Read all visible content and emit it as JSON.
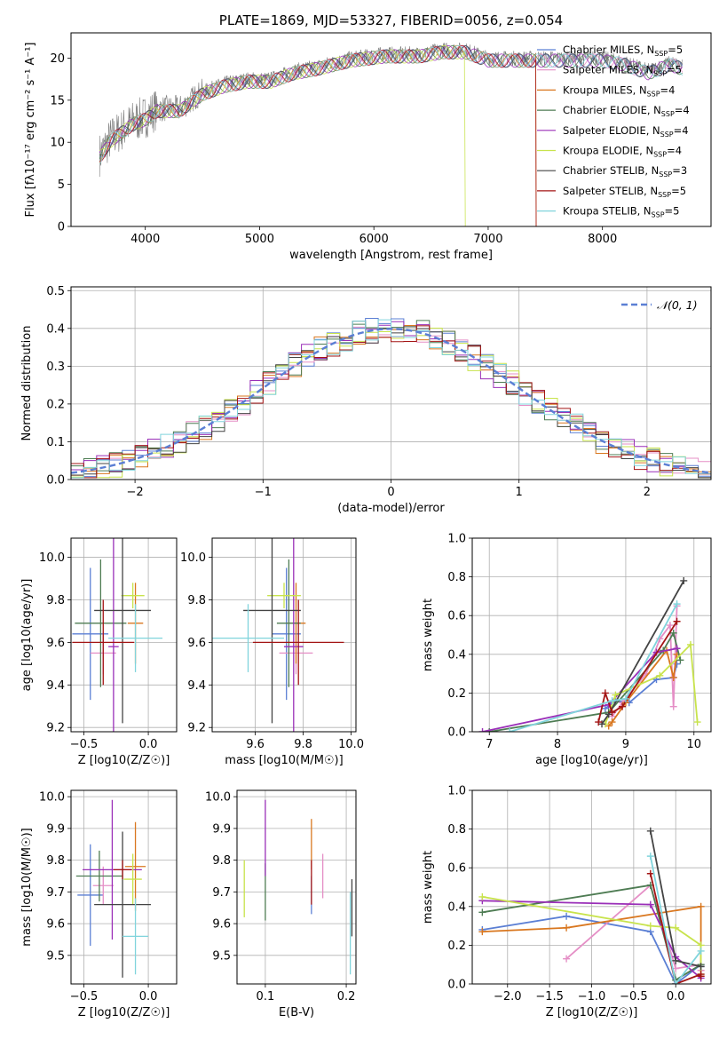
{
  "colors": {
    "c0": "#5b7fd4",
    "c1": "#e58fc6",
    "c2": "#d9771f",
    "c3": "#4e7c53",
    "c4": "#9a2fb8",
    "c5": "#c8e34c",
    "c6": "#444444",
    "c7": "#a31515",
    "c8": "#80d4dc"
  },
  "chart_data": [
    {
      "id": "spectrum",
      "type": "line",
      "title": "PLATE=1869, MJD=53327, FIBERID=0056, z=0.054",
      "xlabel": "wavelength [Angstrom, rest frame]",
      "ylabel": "Flux [fλ10⁻¹⁷ erg cm⁻² s⁻¹ A⁻¹]",
      "xlim": [
        3350,
        8950
      ],
      "ylim": [
        0,
        23
      ],
      "xticks": [
        4000,
        5000,
        6000,
        7000,
        8000
      ],
      "yticks": [
        0,
        5,
        10,
        15,
        20
      ],
      "grid": false,
      "legend_position": "top-right",
      "continuum": [
        [
          3600,
          8.5
        ],
        [
          3700,
          10.5
        ],
        [
          3800,
          11.5
        ],
        [
          3900,
          12.5
        ],
        [
          4000,
          13
        ],
        [
          4100,
          14
        ],
        [
          4300,
          14
        ],
        [
          4500,
          16
        ],
        [
          4700,
          17
        ],
        [
          4900,
          17.5
        ],
        [
          5100,
          17.5
        ],
        [
          5300,
          18.5
        ],
        [
          5500,
          19
        ],
        [
          5800,
          20
        ],
        [
          6100,
          20.5
        ],
        [
          6400,
          20.5
        ],
        [
          6600,
          21
        ],
        [
          6800,
          21
        ],
        [
          7000,
          20
        ],
        [
          7200,
          20
        ],
        [
          7400,
          20
        ],
        [
          7600,
          20
        ],
        [
          7800,
          20
        ],
        [
          8000,
          20
        ],
        [
          8200,
          19.5
        ],
        [
          8400,
          18.5
        ],
        [
          8600,
          19.5
        ],
        [
          8700,
          19
        ]
      ],
      "legend": [
        {
          "label": "Chabrier MILES, N",
          "sub": "SSP",
          "suffix": "=5",
          "color": "c0"
        },
        {
          "label": "Salpeter MILES, N",
          "sub": "SSP",
          "suffix": "=5",
          "color": "c1"
        },
        {
          "label": "Kroupa MILES, N",
          "sub": "SSP",
          "suffix": "=4",
          "color": "c2"
        },
        {
          "label": "Chabrier ELODIE, N",
          "sub": "SSP",
          "suffix": "=4",
          "color": "c3"
        },
        {
          "label": "Salpeter ELODIE, N",
          "sub": "SSP",
          "suffix": "=4",
          "color": "c4"
        },
        {
          "label": "Kroupa ELODIE, N",
          "sub": "SSP",
          "suffix": "=4",
          "color": "c5"
        },
        {
          "label": "Chabrier STELIB, N",
          "sub": "SSP",
          "suffix": "=3",
          "color": "c6"
        },
        {
          "label": "Salpeter STELIB, N",
          "sub": "SSP",
          "suffix": "=5",
          "color": "c7"
        },
        {
          "label": "Kroupa STELIB, N",
          "sub": "SSP",
          "suffix": "=5",
          "color": "c8"
        }
      ]
    },
    {
      "id": "residuals",
      "type": "line",
      "xlabel": "(data-model)/error",
      "ylabel": "Normed distribution",
      "xlim": [
        -2.5,
        2.5
      ],
      "ylim": [
        0,
        0.51
      ],
      "xticks": [
        -2,
        -1,
        0,
        1,
        2
      ],
      "yticks": [
        0.0,
        0.1,
        0.2,
        0.3,
        0.4,
        0.5
      ],
      "xtick_labels": [
        "−2",
        "−1",
        "0",
        "1",
        "2"
      ],
      "ytick_labels": [
        "0.0",
        "0.1",
        "0.2",
        "0.3",
        "0.4",
        "0.5"
      ],
      "grid": true,
      "legend_position": "top-right",
      "legend": [
        {
          "label": "𝒩(0, 1)",
          "color": "c0"
        }
      ],
      "gaussian": {
        "mean": 0,
        "sigma": 1
      }
    },
    {
      "id": "age_vs_z",
      "type": "scatter",
      "xlabel": "Z [log10(Z/Z☉)]",
      "ylabel": "age  [log10(age/yr)]",
      "xlim": [
        -0.6,
        0.22
      ],
      "ylim": [
        9.18,
        10.09
      ],
      "xticks": [
        -0.5,
        0.0
      ],
      "yticks": [
        9.2,
        9.4,
        9.6,
        9.8,
        10.0
      ],
      "xtick_labels": [
        "−0.5",
        "0.0"
      ],
      "ytick_labels": [
        "9.2",
        "9.4",
        "9.6",
        "9.8",
        "10.0"
      ],
      "grid": true,
      "points": [
        {
          "x": -0.45,
          "y": 9.64,
          "xerr": 0.14,
          "yerr": 0.31,
          "color": "c0"
        },
        {
          "x": -0.35,
          "y": 9.55,
          "xerr": 0.1,
          "yerr": 0.1,
          "color": "c1"
        },
        {
          "x": -0.1,
          "y": 9.69,
          "xerr": 0.06,
          "yerr": 0.19,
          "color": "c2"
        },
        {
          "x": -0.37,
          "y": 9.69,
          "xerr": 0.2,
          "yerr": 0.3,
          "color": "c3"
        },
        {
          "x": -0.27,
          "y": 9.58,
          "xerr": 0.04,
          "yerr": 0.52,
          "color": "c4"
        },
        {
          "x": -0.12,
          "y": 9.82,
          "xerr": 0.09,
          "yerr": 0.06,
          "color": "c5"
        },
        {
          "x": -0.2,
          "y": 9.75,
          "xerr": 0.22,
          "yerr": 0.53,
          "color": "c6"
        },
        {
          "x": -0.35,
          "y": 9.6,
          "xerr": 0.24,
          "yerr": 0.2,
          "color": "c7"
        },
        {
          "x": -0.1,
          "y": 9.62,
          "xerr": 0.21,
          "yerr": 0.16,
          "color": "c8"
        }
      ]
    },
    {
      "id": "age_vs_mass",
      "type": "scatter",
      "xlabel": "mass [log10(M/M☉)]",
      "ylabel": "",
      "xlim": [
        9.42,
        10.02
      ],
      "ylim": [
        9.18,
        10.09
      ],
      "xticks": [
        9.6,
        9.8,
        10.0
      ],
      "yticks": [
        9.2,
        9.4,
        9.6,
        9.8,
        10.0
      ],
      "xtick_labels": [
        "9.6",
        "9.8",
        "10.0"
      ],
      "ytick_labels": [
        "9.2",
        "9.4",
        "9.6",
        "9.8",
        "10.0"
      ],
      "grid": true,
      "points": [
        {
          "x": 9.73,
          "y": 9.64,
          "xerr": 0.06,
          "yerr": 0.31,
          "color": "c0"
        },
        {
          "x": 9.77,
          "y": 9.55,
          "xerr": 0.07,
          "yerr": 0.1,
          "color": "c1"
        },
        {
          "x": 9.77,
          "y": 9.69,
          "xerr": 0.04,
          "yerr": 0.19,
          "color": "c2"
        },
        {
          "x": 9.74,
          "y": 9.69,
          "xerr": 0.05,
          "yerr": 0.3,
          "color": "c3"
        },
        {
          "x": 9.76,
          "y": 9.58,
          "xerr": 0.04,
          "yerr": 0.52,
          "color": "c4"
        },
        {
          "x": 9.72,
          "y": 9.82,
          "xerr": 0.07,
          "yerr": 0.06,
          "color": "c5"
        },
        {
          "x": 9.67,
          "y": 9.75,
          "xerr": 0.12,
          "yerr": 0.53,
          "color": "c6"
        },
        {
          "x": 9.78,
          "y": 9.6,
          "xerr": 0.19,
          "yerr": 0.2,
          "color": "c7"
        },
        {
          "x": 9.57,
          "y": 9.62,
          "xerr": 0.15,
          "yerr": 0.16,
          "color": "c8"
        }
      ]
    },
    {
      "id": "weight_vs_age",
      "type": "line",
      "xlabel": "age  [log10(age/yr)]",
      "ylabel": "mass weight",
      "xlim": [
        6.75,
        10.25
      ],
      "ylim": [
        0,
        1.0
      ],
      "xticks": [
        7,
        8,
        9,
        10
      ],
      "yticks": [
        0.0,
        0.2,
        0.4,
        0.6,
        0.8,
        1.0
      ],
      "xtick_labels": [
        "7",
        "8",
        "9",
        "10"
      ],
      "ytick_labels": [
        "0.0",
        "0.2",
        "0.4",
        "0.6",
        "0.8",
        "1.0"
      ],
      "grid": true,
      "series": [
        {
          "color": "c0",
          "x": [
            8.7,
            8.85,
            9.05,
            9.45,
            9.7,
            9.75
          ],
          "y": [
            0.12,
            0.16,
            0.15,
            0.27,
            0.28,
            0.35
          ]
        },
        {
          "color": "c1",
          "x": [
            8.8,
            8.95,
            9.3,
            9.5,
            9.65,
            9.7,
            9.75
          ],
          "y": [
            0.08,
            0.15,
            0.3,
            0.48,
            0.55,
            0.13,
            0.65
          ]
        },
        {
          "color": "c2",
          "x": [
            8.75,
            8.8,
            9.0,
            9.6,
            9.7,
            9.75
          ],
          "y": [
            0.03,
            0.05,
            0.15,
            0.42,
            0.28,
            0.4
          ]
        },
        {
          "color": "c3",
          "x": [
            7.0,
            8.75,
            9.55,
            9.7,
            9.8
          ],
          "y": [
            0.0,
            0.1,
            0.42,
            0.51,
            0.37
          ]
        },
        {
          "color": "c4",
          "x": [
            6.9,
            8.75,
            9.45,
            9.75
          ],
          "y": [
            0.0,
            0.14,
            0.41,
            0.43
          ]
        },
        {
          "color": "c5",
          "x": [
            8.7,
            8.85,
            9.5,
            9.95,
            10.05
          ],
          "y": [
            0.04,
            0.19,
            0.29,
            0.45,
            0.05
          ]
        },
        {
          "color": "c6",
          "x": [
            8.65,
            8.75,
            9.85
          ],
          "y": [
            0.04,
            0.09,
            0.78
          ]
        },
        {
          "color": "c7",
          "x": [
            8.6,
            8.7,
            8.8,
            8.95,
            9.75
          ],
          "y": [
            0.05,
            0.2,
            0.1,
            0.13,
            0.57
          ]
        },
        {
          "color": "c8",
          "x": [
            7.3,
            8.8,
            9.0,
            9.75
          ],
          "y": [
            0.0,
            0.16,
            0.17,
            0.66
          ]
        }
      ]
    },
    {
      "id": "mass_vs_z",
      "type": "scatter",
      "xlabel": "Z [log10(Z/Z☉)]",
      "ylabel": "mass [log10(M/M☉)]",
      "xlim": [
        -0.6,
        0.22
      ],
      "ylim": [
        9.41,
        10.02
      ],
      "xticks": [
        -0.5,
        0.0
      ],
      "yticks": [
        9.5,
        9.6,
        9.7,
        9.8,
        9.9,
        10.0
      ],
      "xtick_labels": [
        "−0.5",
        "0.0"
      ],
      "ytick_labels": [
        "9.5",
        "9.6",
        "9.7",
        "9.8",
        "9.9",
        "10.0"
      ],
      "grid": true,
      "points": [
        {
          "x": -0.45,
          "y": 9.69,
          "xerr": 0.1,
          "yerr": 0.16,
          "color": "c0"
        },
        {
          "x": -0.35,
          "y": 9.72,
          "xerr": 0.08,
          "yerr": 0.06,
          "color": "c1"
        },
        {
          "x": -0.1,
          "y": 9.78,
          "xerr": 0.08,
          "yerr": 0.14,
          "color": "c2"
        },
        {
          "x": -0.38,
          "y": 9.75,
          "xerr": 0.18,
          "yerr": 0.08,
          "color": "c3"
        },
        {
          "x": -0.28,
          "y": 9.77,
          "xerr": 0.23,
          "yerr": 0.22,
          "color": "c4"
        },
        {
          "x": -0.12,
          "y": 9.74,
          "xerr": 0.07,
          "yerr": 0.08,
          "color": "c5"
        },
        {
          "x": -0.2,
          "y": 9.66,
          "xerr": 0.22,
          "yerr": 0.23,
          "color": "c6"
        },
        {
          "x": -0.2,
          "y": 9.77,
          "xerr": 0.07,
          "yerr": 0.03,
          "color": "c7"
        },
        {
          "x": -0.1,
          "y": 9.56,
          "xerr": 0.1,
          "yerr": 0.12,
          "color": "c8"
        }
      ]
    },
    {
      "id": "mass_vs_ebv",
      "type": "scatter",
      "xlabel": "E(B-V)",
      "ylabel": "",
      "xlim": [
        0.065,
        0.212
      ],
      "ylim": [
        9.41,
        10.02
      ],
      "xticks": [
        0.1,
        0.2
      ],
      "yticks": [
        9.5,
        9.6,
        9.7,
        9.8,
        9.9,
        10.0
      ],
      "xtick_labels": [
        "0.1",
        "0.2"
      ],
      "ytick_labels": [
        "9.5",
        "9.6",
        "9.7",
        "9.8",
        "9.9",
        "10.0"
      ],
      "grid": true,
      "points": [
        {
          "x": 0.157,
          "y": 9.69,
          "xerr": 0,
          "yerr": 0.06,
          "color": "c0"
        },
        {
          "x": 0.171,
          "y": 9.75,
          "xerr": 0,
          "yerr": 0.07,
          "color": "c1"
        },
        {
          "x": 0.157,
          "y": 9.85,
          "xerr": 0,
          "yerr": 0.08,
          "color": "c2"
        },
        {
          "x": 0.1,
          "y": 9.7,
          "xerr": 0,
          "yerr": 0.09,
          "color": "c3"
        },
        {
          "x": 0.1,
          "y": 9.87,
          "xerr": 0,
          "yerr": 0.12,
          "color": "c4"
        },
        {
          "x": 0.074,
          "y": 9.71,
          "xerr": 0,
          "yerr": 0.09,
          "color": "c5"
        },
        {
          "x": 0.207,
          "y": 9.65,
          "xerr": 0,
          "yerr": 0.09,
          "color": "c6"
        },
        {
          "x": 0.157,
          "y": 9.73,
          "xerr": 0,
          "yerr": 0.07,
          "color": "c7"
        },
        {
          "x": 0.205,
          "y": 9.57,
          "xerr": 0,
          "yerr": 0.13,
          "color": "c8"
        }
      ]
    },
    {
      "id": "weight_vs_z",
      "type": "line",
      "xlabel": "Z [log10(Z/Z☉)]",
      "ylabel": "mass weight",
      "xlim": [
        -2.42,
        0.42
      ],
      "ylim": [
        0,
        1.0
      ],
      "xticks": [
        -2.0,
        -1.5,
        -1.0,
        -0.5,
        0.0
      ],
      "yticks": [
        0.0,
        0.2,
        0.4,
        0.6,
        0.8,
        1.0
      ],
      "xtick_labels": [
        "−2.0",
        "−1.5",
        "−1.0",
        "−0.5",
        "0.0"
      ],
      "ytick_labels": [
        "0.0",
        "0.2",
        "0.4",
        "0.6",
        "0.8",
        "1.0"
      ],
      "grid": true,
      "series": [
        {
          "color": "c0",
          "x": [
            -2.3,
            -1.3,
            -0.3,
            0.0,
            0.3,
            0.3
          ],
          "y": [
            0.28,
            0.35,
            0.27,
            0.0,
            0.1,
            0.09
          ]
        },
        {
          "color": "c1",
          "x": [
            -1.3,
            -0.3,
            0.0,
            0.3,
            0.3
          ],
          "y": [
            0.13,
            0.51,
            0.08,
            0.1,
            0.07
          ]
        },
        {
          "color": "c2",
          "x": [
            -2.3,
            -1.3,
            0.3,
            0.3
          ],
          "y": [
            0.27,
            0.29,
            0.4,
            0.04
          ]
        },
        {
          "color": "c3",
          "x": [
            -2.3,
            -0.3,
            0.0,
            0.3
          ],
          "y": [
            0.37,
            0.51,
            0.02,
            0.1
          ]
        },
        {
          "color": "c4",
          "x": [
            -2.3,
            -0.3,
            0.0,
            0.3
          ],
          "y": [
            0.43,
            0.41,
            0.14,
            0.03
          ]
        },
        {
          "color": "c5",
          "x": [
            -2.3,
            -0.3,
            0.0,
            0.3,
            0.3
          ],
          "y": [
            0.45,
            0.3,
            0.29,
            0.2,
            0.05
          ]
        },
        {
          "color": "c6",
          "x": [
            -0.3,
            0.0,
            0.3
          ],
          "y": [
            0.79,
            0.12,
            0.09
          ]
        },
        {
          "color": "c7",
          "x": [
            -0.3,
            0.0,
            0.3,
            0.3
          ],
          "y": [
            0.57,
            0.0,
            0.05,
            0.04
          ]
        },
        {
          "color": "c8",
          "x": [
            -0.3,
            0.0,
            0.3
          ],
          "y": [
            0.66,
            0.0,
            0.17
          ]
        }
      ]
    }
  ]
}
